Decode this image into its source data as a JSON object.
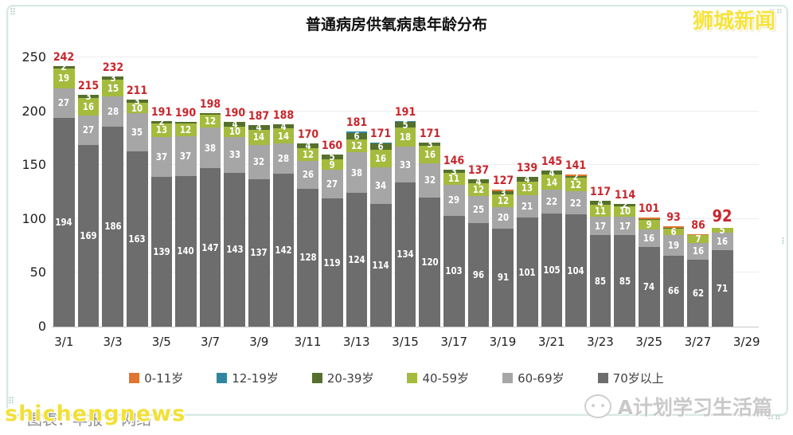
{
  "title": "普通病房供氧病患年龄分布",
  "watermarks": {
    "top_right": "狮城新闻",
    "bottom_left_overlay": "shichengnews",
    "bottom_left_caption": "图表：早报 • 网络",
    "bottom_right": "A计划学习生活篇"
  },
  "colors": {
    "total_label": "#c9262c",
    "axis_text": "#1f1f1f",
    "grid": "#ededed",
    "frame": "#d8e9e5"
  },
  "y_axis": {
    "ticks": [
      0,
      50,
      100,
      150,
      200,
      250
    ],
    "max": 250
  },
  "x_axis": {
    "labels": [
      "3/1",
      "3/3",
      "3/5",
      "3/7",
      "3/9",
      "3/11",
      "3/13",
      "3/15",
      "3/17",
      "3/19",
      "3/21",
      "3/23",
      "3/25",
      "3/27",
      "3/29"
    ]
  },
  "legend": [
    {
      "label": "0-11岁",
      "color": "#e0762f"
    },
    {
      "label": "12-19岁",
      "color": "#2f86a0"
    },
    {
      "label": "20-39岁",
      "color": "#55702c"
    },
    {
      "label": "40-59岁",
      "color": "#a5bb3e"
    },
    {
      "label": "60-69岁",
      "color": "#a6a6a6"
    },
    {
      "label": "70岁以上",
      "color": "#6d6d6d"
    }
  ],
  "chart_data": {
    "type": "bar",
    "stacked": true,
    "title": "普通病房供氧病患年龄分布",
    "xlabel": "",
    "ylabel": "",
    "ylim": [
      0,
      250
    ],
    "grid": true,
    "legend_position": "bottom",
    "categories": [
      "3/1",
      "3/2",
      "3/3",
      "3/4",
      "3/5",
      "3/6",
      "3/7",
      "3/8",
      "3/9",
      "3/10",
      "3/11",
      "3/12",
      "3/13",
      "3/14",
      "3/15",
      "3/16",
      "3/17",
      "3/18",
      "3/19",
      "3/20",
      "3/21",
      "3/22",
      "3/23",
      "3/24",
      "3/25",
      "3/26",
      "3/27",
      "3/28"
    ],
    "series": [
      {
        "name": "0-11岁",
        "color": "#e0762f",
        "values": [
          0,
          0,
          0,
          0,
          0,
          0,
          0,
          0,
          0,
          0,
          0,
          0,
          0,
          0,
          0,
          0,
          0,
          0,
          1,
          0,
          0,
          1,
          0,
          0,
          1,
          1,
          1,
          0
        ]
      },
      {
        "name": "12-19岁",
        "color": "#2f86a0",
        "values": [
          0,
          0,
          0,
          0,
          0,
          0,
          0,
          0,
          0,
          0,
          0,
          0,
          1,
          1,
          1,
          0,
          0,
          0,
          0,
          0,
          0,
          0,
          0,
          0,
          0,
          0,
          0,
          0
        ]
      },
      {
        "name": "20-39岁",
        "color": "#55702c",
        "values": [
          2,
          3,
          3,
          3,
          2,
          1,
          1,
          4,
          4,
          4,
          4,
          5,
          6,
          6,
          5,
          3,
          3,
          4,
          3,
          4,
          4,
          2,
          4,
          2,
          1,
          1,
          0,
          0
        ]
      },
      {
        "name": "40-59岁",
        "color": "#a5bb3e",
        "values": [
          19,
          16,
          15,
          10,
          13,
          12,
          12,
          10,
          14,
          14,
          12,
          9,
          12,
          16,
          18,
          16,
          11,
          12,
          12,
          13,
          14,
          12,
          11,
          10,
          9,
          6,
          7,
          5
        ]
      },
      {
        "name": "60-69岁",
        "color": "#a6a6a6",
        "values": [
          27,
          27,
          28,
          35,
          37,
          37,
          38,
          33,
          32,
          28,
          26,
          27,
          38,
          34,
          33,
          32,
          29,
          25,
          20,
          21,
          22,
          22,
          17,
          17,
          16,
          19,
          16,
          16
        ]
      },
      {
        "name": "70岁以上",
        "color": "#6d6d6d",
        "values": [
          194,
          169,
          186,
          163,
          139,
          140,
          147,
          143,
          137,
          142,
          128,
          119,
          124,
          114,
          134,
          120,
          103,
          96,
          91,
          101,
          105,
          104,
          85,
          85,
          74,
          66,
          62,
          71
        ]
      }
    ],
    "totals": [
      242,
      215,
      232,
      211,
      191,
      190,
      198,
      190,
      187,
      188,
      170,
      160,
      181,
      171,
      191,
      171,
      146,
      137,
      127,
      139,
      145,
      141,
      117,
      114,
      101,
      93,
      86,
      92
    ]
  }
}
